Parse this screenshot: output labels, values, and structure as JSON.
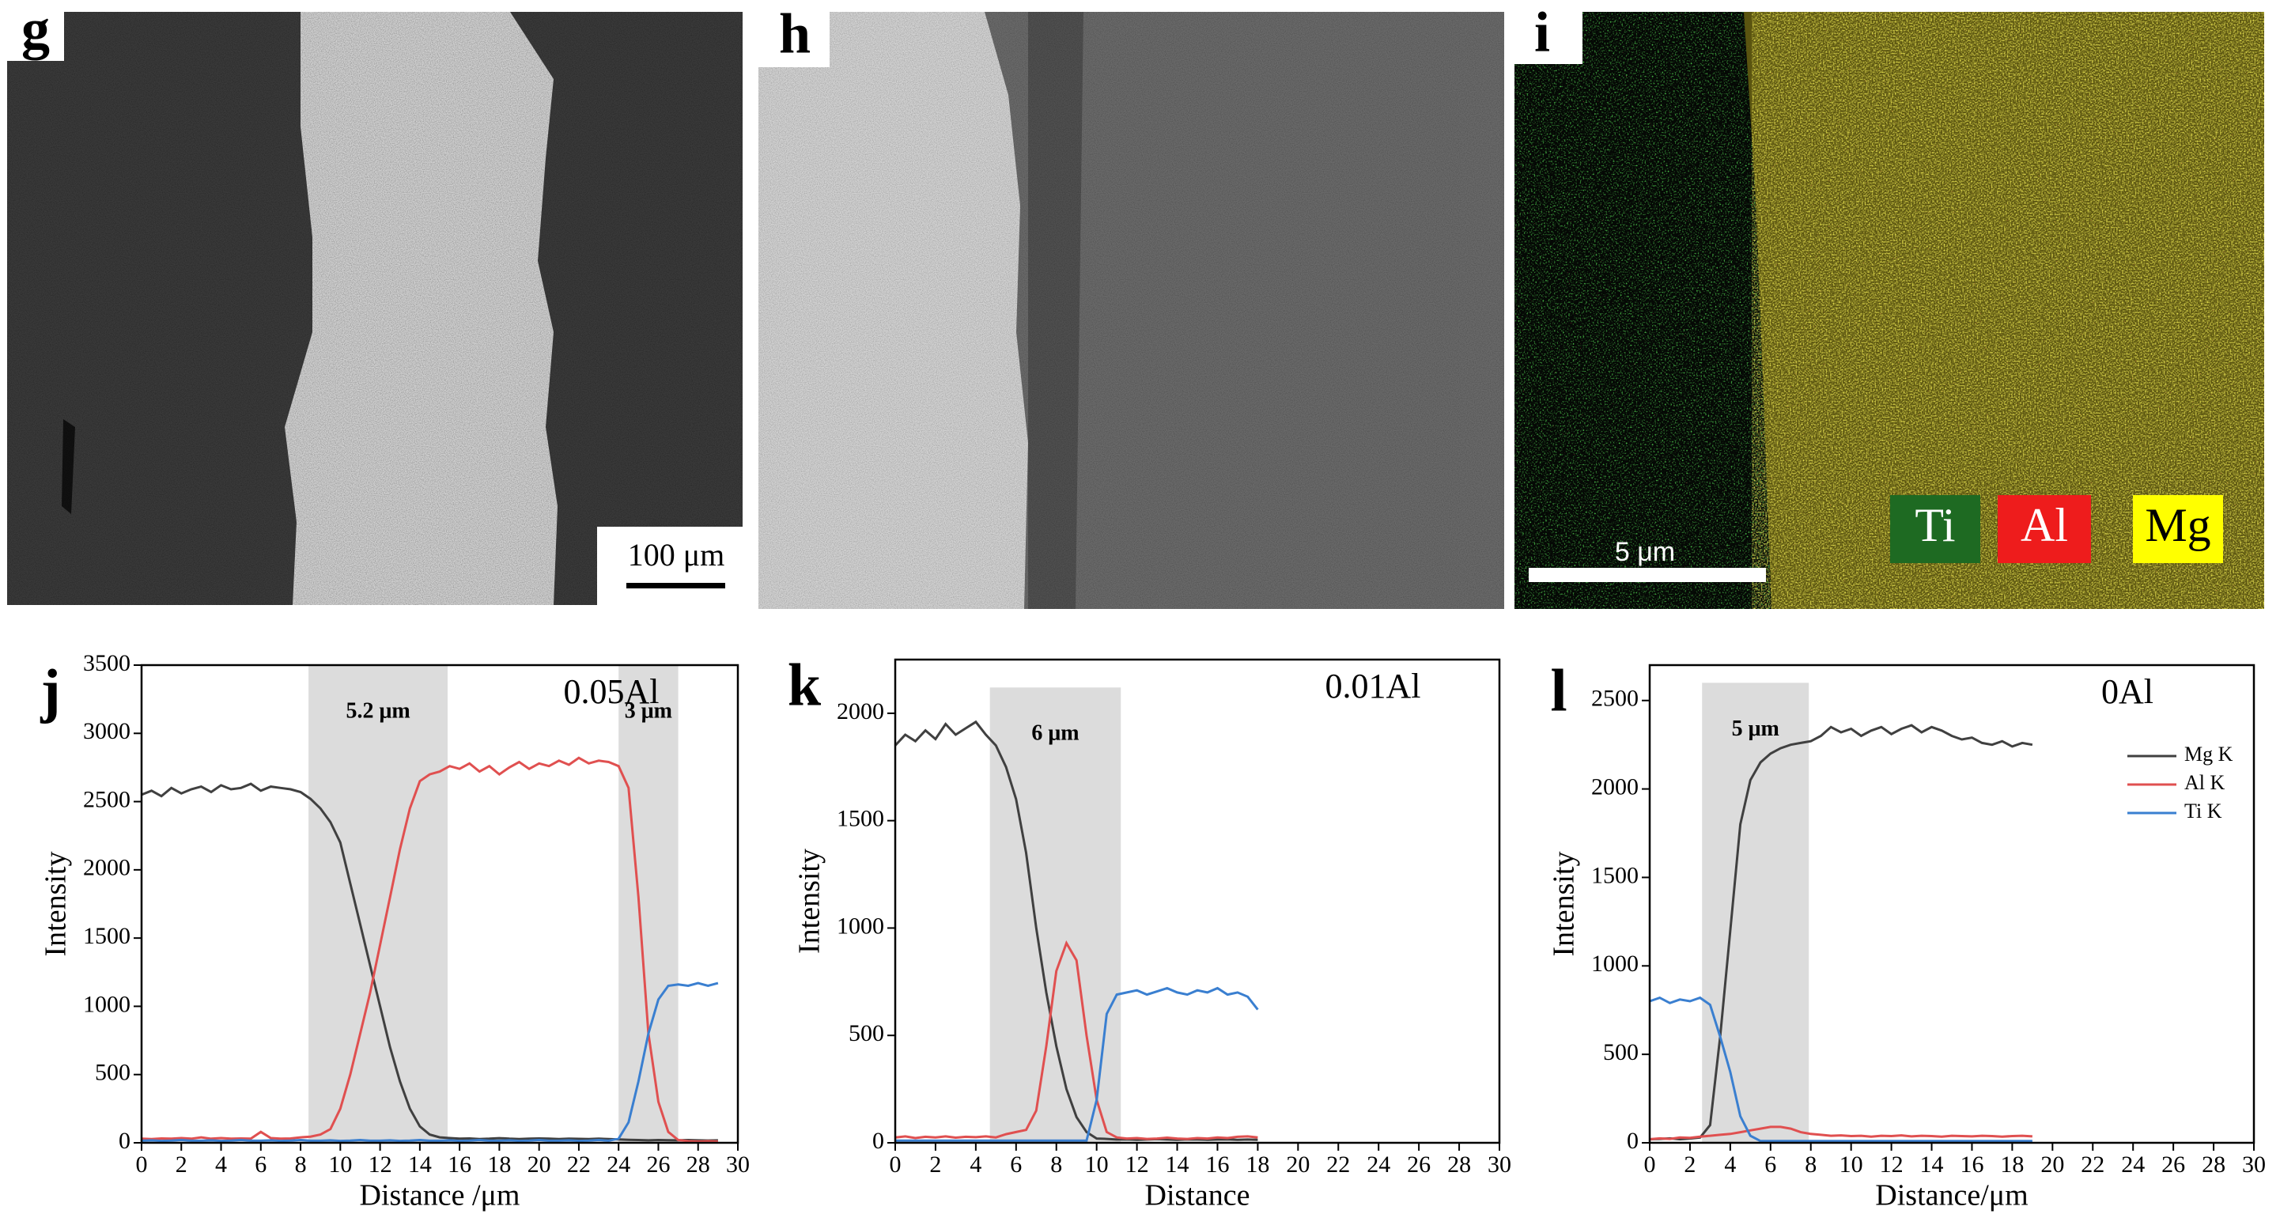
{
  "images": [
    {
      "label": "g",
      "scale_bar": "100 μm"
    },
    {
      "label": "h"
    },
    {
      "label": "i",
      "scale_bar": "5 μm",
      "elements": [
        "Ti",
        "Al",
        "Mg"
      ]
    }
  ],
  "chart_data": [
    {
      "type": "line",
      "label": "j",
      "annotation": "0.05Al",
      "x_label": "Distance /μm",
      "y_label": "Intensity",
      "xlim": [
        0,
        30
      ],
      "xticks": [
        0,
        2,
        4,
        6,
        8,
        10,
        12,
        14,
        16,
        18,
        20,
        22,
        24,
        26,
        28,
        30
      ],
      "ylim": [
        0,
        3500
      ],
      "yticks": [
        0,
        500,
        1000,
        1500,
        2000,
        2500,
        3000,
        3500
      ],
      "grid": false,
      "bands": [
        {
          "x": [
            8.4,
            15.4
          ],
          "label": "5.2 μm"
        },
        {
          "x": [
            24,
            27
          ],
          "label": "3 μm"
        }
      ],
      "x": [
        0,
        0.5,
        1,
        1.5,
        2,
        2.5,
        3,
        3.5,
        4,
        4.5,
        5,
        5.5,
        6,
        6.5,
        7,
        7.5,
        8,
        8.5,
        9,
        9.5,
        10,
        10.5,
        11,
        11.5,
        12,
        12.5,
        13,
        13.5,
        14,
        14.5,
        15,
        15.5,
        16,
        16.5,
        17,
        17.5,
        18,
        18.5,
        19,
        19.5,
        20,
        20.5,
        21,
        21.5,
        22,
        22.5,
        23,
        23.5,
        24,
        24.5,
        25,
        25.5,
        26,
        26.5,
        27,
        27.5,
        28,
        28.5,
        29
      ],
      "series": [
        {
          "name": "Mg K",
          "color": "#404040",
          "values": [
            2550,
            2580,
            2540,
            2600,
            2560,
            2590,
            2610,
            2570,
            2620,
            2590,
            2600,
            2630,
            2580,
            2610,
            2600,
            2590,
            2570,
            2520,
            2450,
            2350,
            2200,
            1900,
            1600,
            1300,
            1000,
            700,
            450,
            250,
            120,
            60,
            40,
            35,
            30,
            32,
            28,
            30,
            34,
            30,
            28,
            30,
            32,
            30,
            28,
            30,
            29,
            27,
            30,
            28,
            25,
            22,
            20,
            18,
            20,
            19,
            18,
            20,
            18,
            17,
            18
          ]
        },
        {
          "name": "Al K",
          "color": "#e05050",
          "values": [
            30,
            28,
            32,
            30,
            35,
            30,
            40,
            30,
            35,
            30,
            32,
            30,
            80,
            35,
            30,
            32,
            40,
            45,
            60,
            100,
            250,
            500,
            800,
            1100,
            1450,
            1800,
            2150,
            2450,
            2650,
            2700,
            2720,
            2760,
            2740,
            2780,
            2720,
            2760,
            2700,
            2750,
            2790,
            2740,
            2780,
            2760,
            2800,
            2770,
            2820,
            2780,
            2800,
            2790,
            2760,
            2600,
            1800,
            800,
            300,
            80,
            20,
            12,
            10,
            12,
            10
          ]
        },
        {
          "name": "Ti K",
          "color": "#3a7fd0",
          "values": [
            15,
            18,
            14,
            16,
            20,
            15,
            15,
            18,
            14,
            16,
            20,
            15,
            15,
            18,
            14,
            16,
            20,
            15,
            15,
            18,
            14,
            16,
            20,
            15,
            15,
            18,
            14,
            16,
            20,
            15,
            15,
            18,
            14,
            16,
            20,
            15,
            15,
            18,
            14,
            16,
            20,
            15,
            15,
            18,
            14,
            16,
            20,
            15,
            30,
            150,
            450,
            800,
            1050,
            1150,
            1160,
            1150,
            1170,
            1150,
            1170
          ]
        }
      ]
    },
    {
      "type": "line",
      "label": "k",
      "annotation": "0.01Al",
      "x_label": "Distance",
      "y_label": "Intensity",
      "xlim": [
        0,
        30
      ],
      "xticks": [
        0,
        2,
        4,
        6,
        8,
        10,
        12,
        14,
        16,
        18,
        20,
        22,
        24,
        26,
        28,
        30
      ],
      "ylim": [
        0,
        2250
      ],
      "yticks": [
        0,
        500,
        1000,
        1500,
        2000
      ],
      "grid": false,
      "bands": [
        {
          "x": [
            4.7,
            11.2
          ],
          "y_top": 2120,
          "label": "6 μm"
        }
      ],
      "x": [
        0,
        0.5,
        1,
        1.5,
        2,
        2.5,
        3,
        3.5,
        4,
        4.5,
        5,
        5.5,
        6,
        6.5,
        7,
        7.5,
        8,
        8.5,
        9,
        9.5,
        10,
        10.5,
        11,
        11.5,
        12,
        12.5,
        13,
        13.5,
        14,
        14.5,
        15,
        15.5,
        16,
        16.5,
        17,
        17.5,
        18
      ],
      "series": [
        {
          "name": "Mg K",
          "color": "#404040",
          "values": [
            1850,
            1900,
            1870,
            1920,
            1880,
            1950,
            1900,
            1930,
            1960,
            1900,
            1850,
            1750,
            1600,
            1350,
            1000,
            700,
            450,
            250,
            120,
            50,
            20,
            18,
            15,
            16,
            14,
            15,
            17,
            15,
            14,
            16,
            15,
            14,
            15,
            16,
            14,
            15,
            14
          ]
        },
        {
          "name": "Al K",
          "color": "#e05050",
          "values": [
            25,
            30,
            22,
            28,
            25,
            30,
            24,
            28,
            26,
            30,
            25,
            40,
            50,
            60,
            150,
            450,
            800,
            930,
            850,
            500,
            200,
            50,
            25,
            20,
            22,
            18,
            20,
            24,
            20,
            18,
            22,
            20,
            25,
            22,
            28,
            30,
            25
          ]
        },
        {
          "name": "Ti K",
          "color": "#3a7fd0",
          "values": [
            10,
            10,
            10,
            10,
            10,
            10,
            10,
            10,
            10,
            10,
            10,
            10,
            10,
            10,
            10,
            10,
            10,
            10,
            10,
            10,
            200,
            600,
            690,
            700,
            710,
            690,
            705,
            720,
            700,
            690,
            710,
            700,
            720,
            690,
            700,
            680,
            620
          ]
        }
      ]
    },
    {
      "type": "line",
      "label": "l",
      "annotation": "0Al",
      "x_label": "Distance/μm",
      "y_label": "Intensity",
      "xlim": [
        0,
        30
      ],
      "xticks": [
        0,
        2,
        4,
        6,
        8,
        10,
        12,
        14,
        16,
        18,
        20,
        22,
        24,
        26,
        28,
        30
      ],
      "ylim": [
        0,
        2700
      ],
      "yticks": [
        0,
        500,
        1000,
        1500,
        2000,
        2500
      ],
      "grid": false,
      "legend": "upper right",
      "bands": [
        {
          "x": [
            2.6,
            7.9
          ],
          "y_top": 2600,
          "label": "5 μm"
        }
      ],
      "x": [
        0,
        0.5,
        1,
        1.5,
        2,
        2.5,
        3,
        3.5,
        4,
        4.5,
        5,
        5.5,
        6,
        6.5,
        7,
        7.5,
        8,
        8.5,
        9,
        9.5,
        10,
        10.5,
        11,
        11.5,
        12,
        12.5,
        13,
        13.5,
        14,
        14.5,
        15,
        15.5,
        16,
        16.5,
        17,
        17.5,
        18,
        18.5,
        19
      ],
      "series": [
        {
          "name": "Mg K",
          "color": "#404040",
          "values": [
            20,
            22,
            25,
            20,
            24,
            30,
            100,
            600,
            1200,
            1800,
            2050,
            2150,
            2200,
            2230,
            2250,
            2260,
            2270,
            2300,
            2350,
            2320,
            2340,
            2300,
            2330,
            2350,
            2310,
            2340,
            2360,
            2320,
            2350,
            2330,
            2300,
            2280,
            2290,
            2260,
            2250,
            2270,
            2240,
            2260,
            2250
          ]
        },
        {
          "name": "Al K",
          "color": "#e05050",
          "values": [
            20,
            25,
            22,
            30,
            28,
            35,
            40,
            45,
            50,
            60,
            70,
            80,
            90,
            90,
            80,
            60,
            50,
            45,
            40,
            42,
            38,
            40,
            35,
            40,
            38,
            42,
            36,
            40,
            38,
            35,
            40,
            38,
            36,
            40,
            38,
            35,
            38,
            40,
            36
          ]
        },
        {
          "name": "Ti K",
          "color": "#3a7fd0",
          "values": [
            800,
            820,
            790,
            810,
            800,
            820,
            780,
            600,
            400,
            150,
            40,
            10,
            10,
            10,
            10,
            10,
            10,
            10,
            10,
            10,
            10,
            10,
            10,
            10,
            10,
            10,
            10,
            10,
            10,
            10,
            10,
            10,
            10,
            10,
            10,
            10,
            10,
            10,
            10
          ]
        }
      ]
    }
  ]
}
